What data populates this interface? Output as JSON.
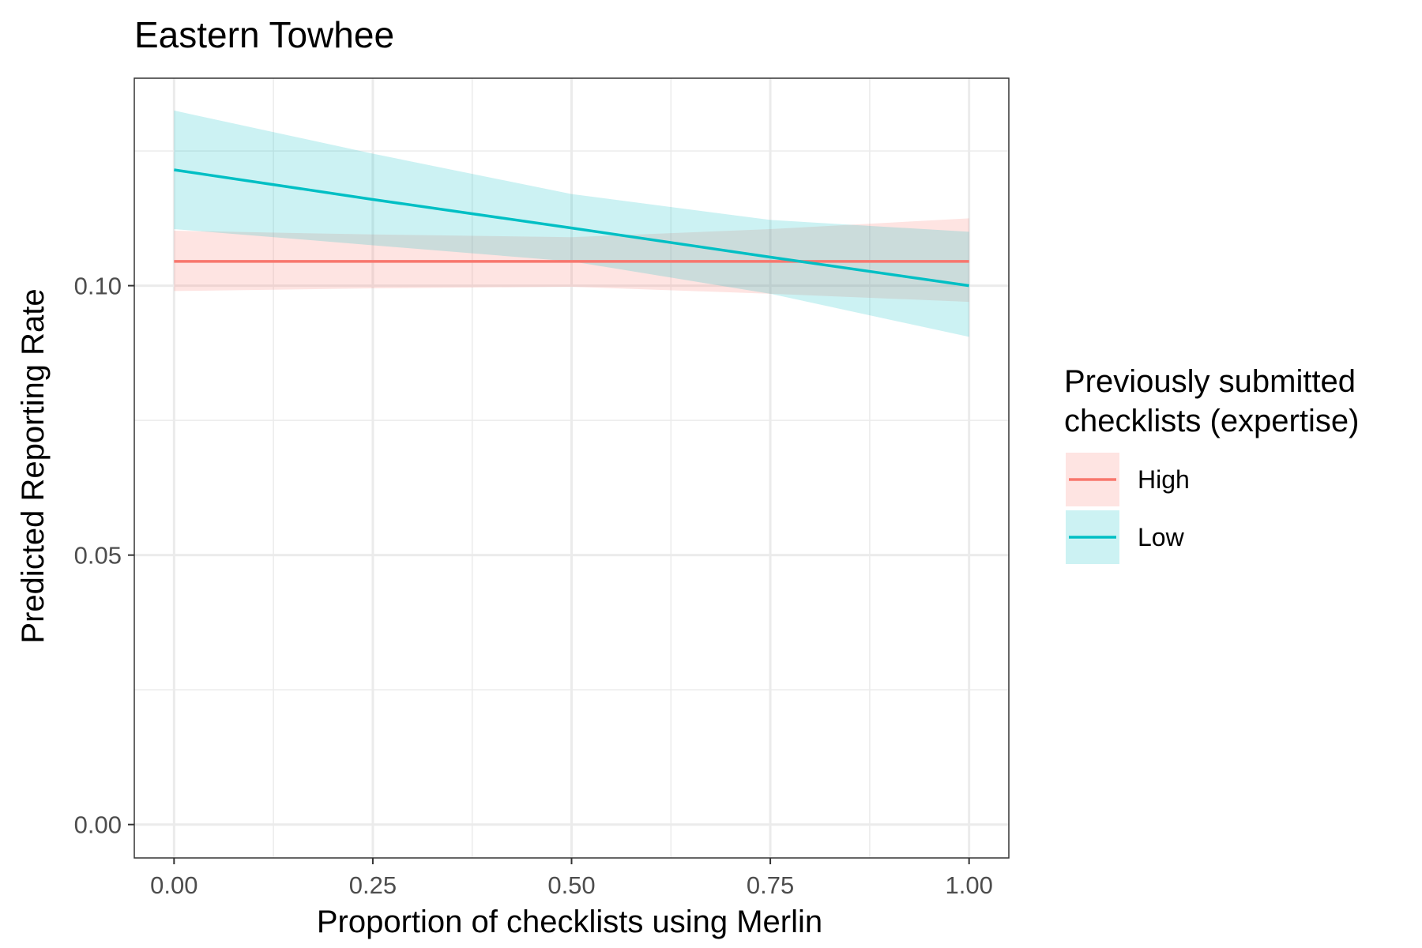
{
  "chart_data": {
    "type": "line",
    "title": "Eastern Towhee",
    "xlabel": "Proportion of checklists using Merlin",
    "ylabel": "Predicted Reporting Rate",
    "xlim": [
      -0.05,
      1.05
    ],
    "ylim": [
      -0.0062,
      0.1385
    ],
    "x_ticks": [
      0,
      0.25,
      0.5,
      0.75,
      1
    ],
    "x_tick_labels": [
      "0.00",
      "0.25",
      "0.50",
      "0.75",
      "1.00"
    ],
    "x_minor_ticks": [
      0.125,
      0.375,
      0.625,
      0.875
    ],
    "y_ticks": [
      0,
      0.05,
      0.1
    ],
    "y_tick_labels": [
      "0.00",
      "0.05",
      "0.10"
    ],
    "y_minor_ticks": [
      0.025,
      0.075,
      0.125
    ],
    "grid": true,
    "legend": {
      "title": "Previously submitted\nchecklists (expertise)",
      "position": "right"
    },
    "series": [
      {
        "name": "High",
        "color": "#F8766D",
        "x": [
          0,
          0.25,
          0.5,
          0.75,
          1
        ],
        "y": [
          0.1045,
          0.1045,
          0.1045,
          0.1045,
          0.1045
        ],
        "lower": [
          0.099,
          0.0995,
          0.0998,
          0.0985,
          0.097
        ],
        "upper": [
          0.1102,
          0.1095,
          0.109,
          0.1105,
          0.1125
        ]
      },
      {
        "name": "Low",
        "color": "#00BFC4",
        "x": [
          0,
          0.25,
          0.5,
          0.75,
          1
        ],
        "y": [
          0.1215,
          0.116,
          0.1107,
          0.1053,
          0.1
        ],
        "lower": [
          0.1105,
          0.1075,
          0.1045,
          0.0985,
          0.0905
        ],
        "upper": [
          0.1325,
          0.1245,
          0.117,
          0.1122,
          0.11
        ]
      }
    ]
  }
}
